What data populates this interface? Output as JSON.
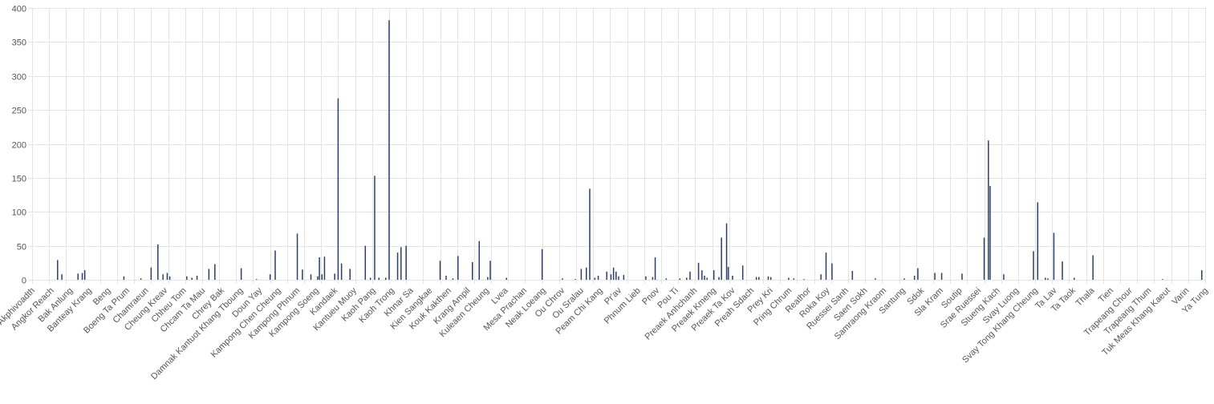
{
  "chart_data": {
    "type": "bar",
    "title": "",
    "xlabel": "",
    "ylabel": "",
    "ylim": [
      0,
      400
    ],
    "yticks": [
      0,
      50,
      100,
      150,
      200,
      250,
      300,
      350,
      400
    ],
    "grid": true,
    "legend": "none",
    "bar_color": "#2b3f66",
    "grid_color": "#e3e3e3",
    "x_labels": [
      "Akphivoadth",
      "Angkor Reach",
      "Bak Anlung",
      "Banteay Krang",
      "Beng",
      "Boeng Ta Prum",
      "Chamraeun",
      "Cheung Kreav",
      "Chheu Tom",
      "Chcam Ta Mau",
      "Chrey Bak",
      "Damnak Kantuot Khang Tboung",
      "Doun Yay",
      "Kampong Chen Cheung",
      "Kampong Phnum",
      "Kampong Soeng",
      "Kandaek",
      "Kantueu Muoy",
      "Kaoh Pang",
      "Kaoh Trong",
      "Khnar Sa",
      "Kien Sangkae",
      "Kouk Kakthen",
      "Krang Ampil",
      "Kuleaen Cheung",
      "Lvea",
      "Mesa Prachan",
      "Neak Loeang",
      "Ou Chrov",
      "Ou Sralau",
      "Peam Chi Kang",
      "Pr'av",
      "Phnum Lieb",
      "Pnov",
      "Pou Ti",
      "Preaek Anhchanh",
      "Preaek Kmeng",
      "Preaek Ta Kov",
      "Preah Sdach",
      "Prey Kri",
      "Pring Chrum",
      "Reathor",
      "Roka Koy",
      "Ruessei Sanh",
      "Saen Sokh",
      "Samraong Kraom",
      "Santung",
      "Sdok",
      "Sla Kram",
      "Soutip",
      "Srae Ruessei",
      "Stueng Kach",
      "Svay Luong",
      "Svay Tong Khang Cheung",
      "Ta Lav",
      "Ta Taok",
      "Thala",
      "Tien",
      "Trapeang Chour",
      "Trapeang Thum",
      "Tuk Meas Khang Kaeut",
      "Varin",
      "Ya Tung"
    ],
    "bars": [
      {
        "x": 1.5,
        "y": 29
      },
      {
        "x": 1.75,
        "y": 8
      },
      {
        "x": 2.7,
        "y": 9
      },
      {
        "x": 2.95,
        "y": 10
      },
      {
        "x": 3.1,
        "y": 14
      },
      {
        "x": 5.4,
        "y": 5
      },
      {
        "x": 6.4,
        "y": 2
      },
      {
        "x": 7.0,
        "y": 18
      },
      {
        "x": 7.4,
        "y": 52
      },
      {
        "x": 7.7,
        "y": 8
      },
      {
        "x": 7.95,
        "y": 10
      },
      {
        "x": 8.1,
        "y": 5
      },
      {
        "x": 9.1,
        "y": 5
      },
      {
        "x": 9.4,
        "y": 3
      },
      {
        "x": 9.7,
        "y": 6
      },
      {
        "x": 10.4,
        "y": 16
      },
      {
        "x": 10.75,
        "y": 23
      },
      {
        "x": 12.3,
        "y": 17
      },
      {
        "x": 13.2,
        "y": 1
      },
      {
        "x": 14.0,
        "y": 8
      },
      {
        "x": 14.3,
        "y": 43
      },
      {
        "x": 15.6,
        "y": 68
      },
      {
        "x": 15.9,
        "y": 15
      },
      {
        "x": 16.4,
        "y": 8
      },
      {
        "x": 16.8,
        "y": 5
      },
      {
        "x": 16.9,
        "y": 33
      },
      {
        "x": 17.05,
        "y": 8
      },
      {
        "x": 17.2,
        "y": 34
      },
      {
        "x": 17.8,
        "y": 9
      },
      {
        "x": 18.0,
        "y": 267
      },
      {
        "x": 18.2,
        "y": 24
      },
      {
        "x": 18.7,
        "y": 16
      },
      {
        "x": 19.6,
        "y": 50
      },
      {
        "x": 19.9,
        "y": 3
      },
      {
        "x": 20.15,
        "y": 153
      },
      {
        "x": 20.4,
        "y": 3
      },
      {
        "x": 20.8,
        "y": 3
      },
      {
        "x": 21.0,
        "y": 382
      },
      {
        "x": 21.5,
        "y": 40
      },
      {
        "x": 21.7,
        "y": 48
      },
      {
        "x": 22.0,
        "y": 50
      },
      {
        "x": 24.0,
        "y": 28
      },
      {
        "x": 24.35,
        "y": 6
      },
      {
        "x": 24.75,
        "y": 2
      },
      {
        "x": 25.05,
        "y": 35
      },
      {
        "x": 25.9,
        "y": 26
      },
      {
        "x": 26.3,
        "y": 57
      },
      {
        "x": 26.8,
        "y": 4
      },
      {
        "x": 26.95,
        "y": 28
      },
      {
        "x": 27.9,
        "y": 3
      },
      {
        "x": 30.0,
        "y": 45
      },
      {
        "x": 31.2,
        "y": 2
      },
      {
        "x": 31.95,
        "y": 1
      },
      {
        "x": 32.3,
        "y": 16
      },
      {
        "x": 32.6,
        "y": 18
      },
      {
        "x": 32.8,
        "y": 134
      },
      {
        "x": 33.1,
        "y": 3
      },
      {
        "x": 33.3,
        "y": 6
      },
      {
        "x": 33.8,
        "y": 12
      },
      {
        "x": 34.05,
        "y": 8
      },
      {
        "x": 34.2,
        "y": 18
      },
      {
        "x": 34.35,
        "y": 12
      },
      {
        "x": 34.5,
        "y": 5
      },
      {
        "x": 34.8,
        "y": 7
      },
      {
        "x": 36.1,
        "y": 5
      },
      {
        "x": 36.5,
        "y": 4
      },
      {
        "x": 36.65,
        "y": 33
      },
      {
        "x": 37.3,
        "y": 2
      },
      {
        "x": 38.1,
        "y": 2
      },
      {
        "x": 38.5,
        "y": 3
      },
      {
        "x": 38.7,
        "y": 12
      },
      {
        "x": 39.2,
        "y": 25
      },
      {
        "x": 39.4,
        "y": 14
      },
      {
        "x": 39.55,
        "y": 6
      },
      {
        "x": 39.7,
        "y": 3
      },
      {
        "x": 40.1,
        "y": 14
      },
      {
        "x": 40.4,
        "y": 4
      },
      {
        "x": 40.55,
        "y": 62
      },
      {
        "x": 40.85,
        "y": 83
      },
      {
        "x": 40.95,
        "y": 19
      },
      {
        "x": 41.2,
        "y": 6
      },
      {
        "x": 41.8,
        "y": 21
      },
      {
        "x": 42.6,
        "y": 4
      },
      {
        "x": 42.75,
        "y": 4
      },
      {
        "x": 43.3,
        "y": 5
      },
      {
        "x": 43.45,
        "y": 4
      },
      {
        "x": 44.5,
        "y": 3
      },
      {
        "x": 44.8,
        "y": 2
      },
      {
        "x": 45.4,
        "y": 1
      },
      {
        "x": 46.4,
        "y": 8
      },
      {
        "x": 46.7,
        "y": 40
      },
      {
        "x": 47.05,
        "y": 24
      },
      {
        "x": 48.25,
        "y": 13
      },
      {
        "x": 49.6,
        "y": 2
      },
      {
        "x": 51.3,
        "y": 2
      },
      {
        "x": 51.9,
        "y": 6
      },
      {
        "x": 52.1,
        "y": 17
      },
      {
        "x": 53.1,
        "y": 10
      },
      {
        "x": 53.5,
        "y": 10
      },
      {
        "x": 54.7,
        "y": 9
      },
      {
        "x": 56.0,
        "y": 62
      },
      {
        "x": 56.25,
        "y": 205
      },
      {
        "x": 56.35,
        "y": 138
      },
      {
        "x": 57.15,
        "y": 8
      },
      {
        "x": 58.9,
        "y": 42
      },
      {
        "x": 59.15,
        "y": 114
      },
      {
        "x": 59.6,
        "y": 3
      },
      {
        "x": 59.75,
        "y": 2
      },
      {
        "x": 60.1,
        "y": 69
      },
      {
        "x": 60.6,
        "y": 27
      },
      {
        "x": 61.3,
        "y": 3
      },
      {
        "x": 62.4,
        "y": 36
      },
      {
        "x": 66.5,
        "y": 1
      },
      {
        "x": 68.8,
        "y": 14
      }
    ]
  }
}
